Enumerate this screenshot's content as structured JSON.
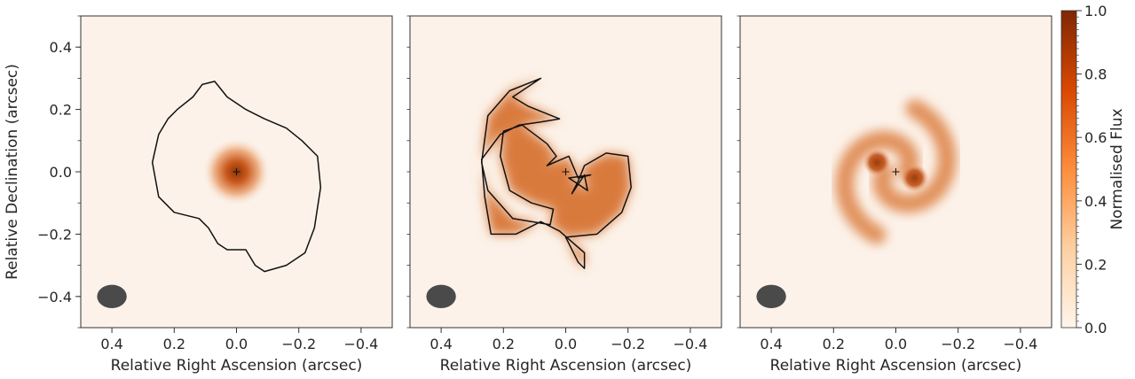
{
  "chart_data": [
    {
      "type": "heatmap",
      "xlabel": "Relative Right Ascension (arcsec)",
      "ylabel": "Relative Declination (arcsec)",
      "xlim": [
        0.5,
        -0.5
      ],
      "ylim": [
        -0.5,
        0.5
      ],
      "xticks": [
        0.4,
        0.2,
        0.0,
        -0.2,
        -0.4
      ],
      "xtick_labels": [
        "0.4",
        "0.2",
        "0.0",
        "−0.2",
        "−0.4"
      ],
      "yticks": [
        0.4,
        0.2,
        0.0,
        -0.2,
        -0.4
      ],
      "ytick_labels": [
        "0.4",
        "0.2",
        "0.0",
        "−0.2",
        "−0.4"
      ],
      "colormap": "Oranges",
      "clim": [
        0.0,
        1.0
      ],
      "structure": "compact central source",
      "peak": [
        0.0,
        0.0
      ],
      "beam": {
        "x": 0.4,
        "y": -0.4,
        "major": 0.095,
        "minor": 0.075
      },
      "contour": [
        [
          0.07,
          0.29
        ],
        [
          0.03,
          0.24
        ],
        [
          -0.03,
          0.2
        ],
        [
          -0.09,
          0.17
        ],
        [
          -0.16,
          0.14
        ],
        [
          -0.21,
          0.1
        ],
        [
          -0.26,
          0.05
        ],
        [
          -0.27,
          -0.05
        ],
        [
          -0.25,
          -0.18
        ],
        [
          -0.22,
          -0.26
        ],
        [
          -0.16,
          -0.3
        ],
        [
          -0.09,
          -0.32
        ],
        [
          -0.06,
          -0.3
        ],
        [
          -0.03,
          -0.25
        ],
        [
          0.03,
          -0.25
        ],
        [
          0.06,
          -0.23
        ],
        [
          0.09,
          -0.18
        ],
        [
          0.12,
          -0.15
        ],
        [
          0.2,
          -0.13
        ],
        [
          0.25,
          -0.08
        ],
        [
          0.27,
          0.03
        ],
        [
          0.25,
          0.12
        ],
        [
          0.22,
          0.17
        ],
        [
          0.19,
          0.2
        ],
        [
          0.14,
          0.24
        ],
        [
          0.11,
          0.28
        ]
      ]
    },
    {
      "type": "heatmap",
      "xlabel": "Relative Right Ascension (arcsec)",
      "xlim": [
        0.5,
        -0.5
      ],
      "ylim": [
        -0.5,
        0.5
      ],
      "xticks": [
        0.4,
        0.2,
        0.0,
        -0.2,
        -0.4
      ],
      "xtick_labels": [
        "0.4",
        "0.2",
        "0.0",
        "−0.2",
        "−0.4"
      ],
      "colormap": "Oranges",
      "clim": [
        0.0,
        1.0
      ],
      "structure": "two-armed spiral",
      "center": [
        0.0,
        0.0
      ],
      "arm_brightness": 0.8,
      "beam": {
        "x": 0.4,
        "y": -0.4,
        "major": 0.095,
        "minor": 0.075
      },
      "contour": [
        [
          0.02,
          0.17
        ],
        [
          0.12,
          0.21
        ],
        [
          0.17,
          0.24
        ],
        [
          0.08,
          0.3
        ],
        [
          0.18,
          0.26
        ],
        [
          0.25,
          0.18
        ],
        [
          0.27,
          0.03
        ],
        [
          0.25,
          -0.06
        ],
        [
          0.17,
          -0.15
        ],
        [
          0.05,
          -0.17
        ],
        [
          0.04,
          -0.12
        ],
        [
          0.11,
          -0.1
        ],
        [
          0.18,
          -0.06
        ],
        [
          0.21,
          0.05
        ],
        [
          0.2,
          0.13
        ],
        [
          0.14,
          0.15
        ],
        [
          0.06,
          0.09
        ],
        [
          0.03,
          0.05
        ],
        [
          0.06,
          0.02
        ],
        [
          -0.01,
          0.05
        ],
        [
          -0.04,
          -0.02
        ],
        [
          -0.08,
          -0.01
        ],
        [
          -0.01,
          -0.02
        ],
        [
          -0.07,
          -0.06
        ],
        [
          -0.06,
          -0.01
        ],
        [
          -0.02,
          -0.07
        ],
        [
          -0.04,
          -0.03
        ],
        [
          -0.06,
          0.02
        ],
        [
          -0.13,
          0.06
        ],
        [
          -0.2,
          0.05
        ],
        [
          -0.21,
          -0.05
        ],
        [
          -0.18,
          -0.13
        ],
        [
          -0.1,
          -0.2
        ],
        [
          0.0,
          -0.21
        ],
        [
          -0.02,
          -0.25
        ],
        [
          -0.04,
          -0.29
        ],
        [
          -0.06,
          -0.31
        ],
        [
          -0.06,
          -0.26
        ],
        [
          0.02,
          -0.19
        ],
        [
          0.08,
          -0.16
        ],
        [
          0.16,
          -0.2
        ],
        [
          0.24,
          -0.2
        ],
        [
          0.26,
          -0.08
        ],
        [
          0.27,
          0.04
        ],
        [
          0.21,
          0.12
        ],
        [
          0.15,
          0.15
        ],
        [
          0.08,
          0.16
        ]
      ]
    },
    {
      "type": "heatmap",
      "xlabel": "Relative Right Ascension (arcsec)",
      "xlim": [
        0.5,
        -0.5
      ],
      "ylim": [
        -0.5,
        0.5
      ],
      "xticks": [
        0.4,
        0.2,
        0.0,
        -0.2,
        -0.4
      ],
      "xtick_labels": [
        "0.4",
        "0.2",
        "0.0",
        "−0.2",
        "−0.4"
      ],
      "colormap": "Oranges",
      "clim": [
        0.0,
        1.0
      ],
      "structure": "two-armed spiral with bright inner clumps",
      "center": [
        0.0,
        0.0
      ],
      "arm_brightness": 0.5,
      "clumps": [
        [
          0.06,
          0.03
        ],
        [
          -0.06,
          -0.02
        ]
      ],
      "beam": {
        "x": 0.4,
        "y": -0.4,
        "major": 0.095,
        "minor": 0.075
      },
      "contour": []
    }
  ],
  "colorbar": {
    "label": "Normalised Flux",
    "ticks": [
      0.0,
      0.2,
      0.4,
      0.6,
      0.8,
      1.0
    ],
    "tick_labels": [
      "0.0",
      "0.2",
      "0.4",
      "0.6",
      "0.8",
      "1.0"
    ],
    "colors": [
      "#fff5eb",
      "#fdd0a2",
      "#fd8d3c",
      "#d94801",
      "#7f2704"
    ]
  }
}
